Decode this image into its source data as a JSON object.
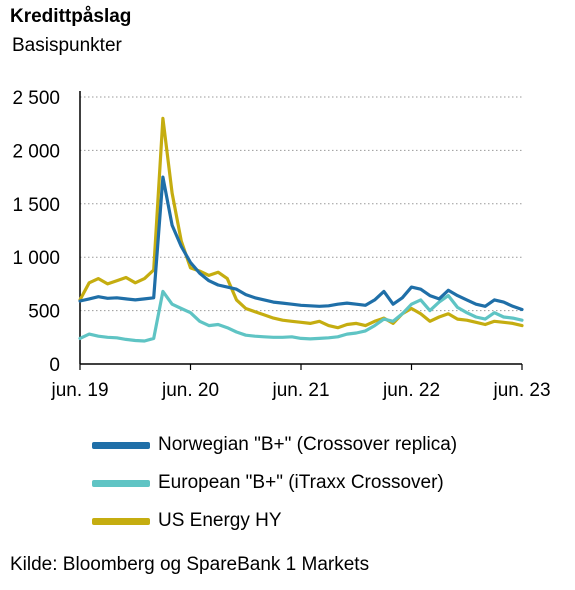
{
  "header": {
    "title": "Kredittpåslag",
    "subtitle": "Basispunkter"
  },
  "source": "Kilde: Bloomberg og SpareBank 1 Markets",
  "chart_data": {
    "type": "line",
    "title": "Kredittpåslag",
    "ylabel": "Basispunkter",
    "xlabel": "",
    "ylim": [
      0,
      2500
    ],
    "xlim": [
      "2019-06",
      "2023-06"
    ],
    "y_ticks": [
      {
        "value": 0,
        "label": "0"
      },
      {
        "value": 500,
        "label": "500"
      },
      {
        "value": 1000,
        "label": "1 000"
      },
      {
        "value": 1500,
        "label": "1 500"
      },
      {
        "value": 2000,
        "label": "2 000"
      },
      {
        "value": 2500,
        "label": "2 500"
      }
    ],
    "x_ticks": [
      {
        "value": "2019-06",
        "label": "jun. 19"
      },
      {
        "value": "2020-06",
        "label": "jun. 20"
      },
      {
        "value": "2021-06",
        "label": "jun. 21"
      },
      {
        "value": "2022-06",
        "label": "jun. 22"
      },
      {
        "value": "2023-06",
        "label": "jun. 23"
      }
    ],
    "grid": true,
    "legend_position": "bottom",
    "series": [
      {
        "name": "Norwegian \"B+\" (Crossover replica)",
        "color": "#1f6fa8",
        "points": [
          [
            "2019-06",
            590
          ],
          [
            "2019-07",
            610
          ],
          [
            "2019-08",
            630
          ],
          [
            "2019-09",
            615
          ],
          [
            "2019-10",
            620
          ],
          [
            "2019-11",
            610
          ],
          [
            "2019-12",
            600
          ],
          [
            "2020-01",
            610
          ],
          [
            "2020-02",
            620
          ],
          [
            "2020-03",
            1750
          ],
          [
            "2020-04",
            1300
          ],
          [
            "2020-05",
            1100
          ],
          [
            "2020-06",
            950
          ],
          [
            "2020-07",
            850
          ],
          [
            "2020-08",
            780
          ],
          [
            "2020-09",
            740
          ],
          [
            "2020-10",
            720
          ],
          [
            "2020-11",
            700
          ],
          [
            "2020-12",
            650
          ],
          [
            "2021-01",
            620
          ],
          [
            "2021-02",
            600
          ],
          [
            "2021-03",
            580
          ],
          [
            "2021-04",
            570
          ],
          [
            "2021-05",
            560
          ],
          [
            "2021-06",
            550
          ],
          [
            "2021-07",
            545
          ],
          [
            "2021-08",
            540
          ],
          [
            "2021-09",
            545
          ],
          [
            "2021-10",
            560
          ],
          [
            "2021-11",
            570
          ],
          [
            "2021-12",
            560
          ],
          [
            "2022-01",
            550
          ],
          [
            "2022-02",
            600
          ],
          [
            "2022-03",
            680
          ],
          [
            "2022-04",
            560
          ],
          [
            "2022-05",
            620
          ],
          [
            "2022-06",
            720
          ],
          [
            "2022-07",
            700
          ],
          [
            "2022-08",
            640
          ],
          [
            "2022-09",
            610
          ],
          [
            "2022-10",
            690
          ],
          [
            "2022-11",
            640
          ],
          [
            "2022-12",
            600
          ],
          [
            "2023-01",
            560
          ],
          [
            "2023-02",
            540
          ],
          [
            "2023-03",
            600
          ],
          [
            "2023-04",
            580
          ],
          [
            "2023-05",
            540
          ],
          [
            "2023-06",
            510
          ]
        ]
      },
      {
        "name": "European \"B+\" (iTraxx Crossover)",
        "color": "#5fc4c4",
        "points": [
          [
            "2019-06",
            240
          ],
          [
            "2019-07",
            280
          ],
          [
            "2019-08",
            260
          ],
          [
            "2019-09",
            250
          ],
          [
            "2019-10",
            245
          ],
          [
            "2019-11",
            230
          ],
          [
            "2019-12",
            220
          ],
          [
            "2020-01",
            215
          ],
          [
            "2020-02",
            240
          ],
          [
            "2020-03",
            680
          ],
          [
            "2020-04",
            560
          ],
          [
            "2020-05",
            520
          ],
          [
            "2020-06",
            480
          ],
          [
            "2020-07",
            400
          ],
          [
            "2020-08",
            360
          ],
          [
            "2020-09",
            370
          ],
          [
            "2020-10",
            340
          ],
          [
            "2020-11",
            300
          ],
          [
            "2020-12",
            270
          ],
          [
            "2021-01",
            260
          ],
          [
            "2021-02",
            255
          ],
          [
            "2021-03",
            250
          ],
          [
            "2021-04",
            250
          ],
          [
            "2021-05",
            255
          ],
          [
            "2021-06",
            240
          ],
          [
            "2021-07",
            235
          ],
          [
            "2021-08",
            240
          ],
          [
            "2021-09",
            245
          ],
          [
            "2021-10",
            255
          ],
          [
            "2021-11",
            280
          ],
          [
            "2021-12",
            290
          ],
          [
            "2022-01",
            310
          ],
          [
            "2022-02",
            360
          ],
          [
            "2022-03",
            420
          ],
          [
            "2022-04",
            400
          ],
          [
            "2022-05",
            470
          ],
          [
            "2022-06",
            560
          ],
          [
            "2022-07",
            600
          ],
          [
            "2022-08",
            500
          ],
          [
            "2022-09",
            580
          ],
          [
            "2022-10",
            640
          ],
          [
            "2022-11",
            530
          ],
          [
            "2022-12",
            480
          ],
          [
            "2023-01",
            440
          ],
          [
            "2023-02",
            420
          ],
          [
            "2023-03",
            480
          ],
          [
            "2023-04",
            440
          ],
          [
            "2023-05",
            430
          ],
          [
            "2023-06",
            410
          ]
        ]
      },
      {
        "name": "US Energy HY",
        "color": "#c5ad10",
        "points": [
          [
            "2019-06",
            600
          ],
          [
            "2019-07",
            760
          ],
          [
            "2019-08",
            800
          ],
          [
            "2019-09",
            750
          ],
          [
            "2019-10",
            780
          ],
          [
            "2019-11",
            810
          ],
          [
            "2019-12",
            760
          ],
          [
            "2020-01",
            800
          ],
          [
            "2020-02",
            880
          ],
          [
            "2020-03",
            2300
          ],
          [
            "2020-04",
            1600
          ],
          [
            "2020-05",
            1150
          ],
          [
            "2020-06",
            900
          ],
          [
            "2020-07",
            870
          ],
          [
            "2020-08",
            830
          ],
          [
            "2020-09",
            860
          ],
          [
            "2020-10",
            800
          ],
          [
            "2020-11",
            600
          ],
          [
            "2020-12",
            520
          ],
          [
            "2021-01",
            490
          ],
          [
            "2021-02",
            460
          ],
          [
            "2021-03",
            430
          ],
          [
            "2021-04",
            410
          ],
          [
            "2021-05",
            400
          ],
          [
            "2021-06",
            390
          ],
          [
            "2021-07",
            380
          ],
          [
            "2021-08",
            400
          ],
          [
            "2021-09",
            360
          ],
          [
            "2021-10",
            340
          ],
          [
            "2021-11",
            370
          ],
          [
            "2021-12",
            380
          ],
          [
            "2022-01",
            360
          ],
          [
            "2022-02",
            400
          ],
          [
            "2022-03",
            430
          ],
          [
            "2022-04",
            380
          ],
          [
            "2022-05",
            470
          ],
          [
            "2022-06",
            520
          ],
          [
            "2022-07",
            470
          ],
          [
            "2022-08",
            400
          ],
          [
            "2022-09",
            440
          ],
          [
            "2022-10",
            470
          ],
          [
            "2022-11",
            420
          ],
          [
            "2022-12",
            410
          ],
          [
            "2023-01",
            390
          ],
          [
            "2023-02",
            370
          ],
          [
            "2023-03",
            400
          ],
          [
            "2023-04",
            390
          ],
          [
            "2023-05",
            380
          ],
          [
            "2023-06",
            360
          ]
        ]
      }
    ]
  }
}
